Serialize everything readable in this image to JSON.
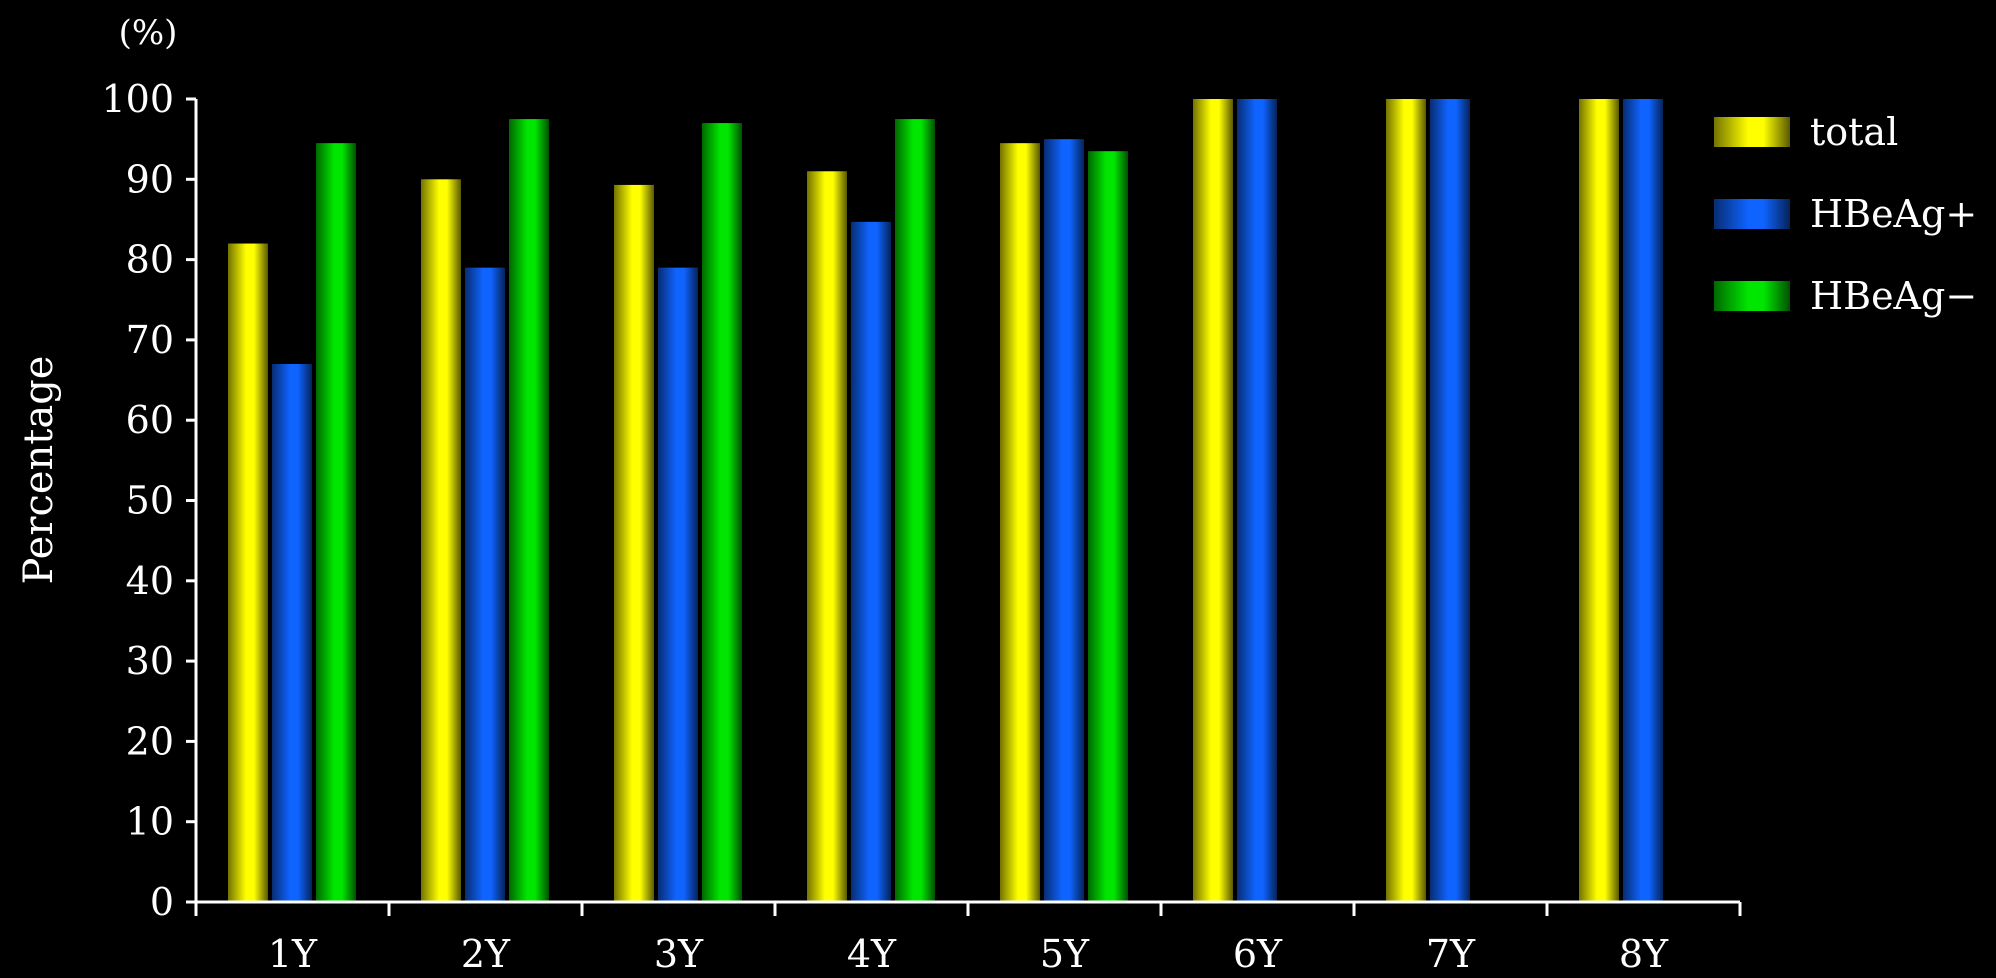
{
  "chart_data": {
    "type": "bar",
    "unit_label": "(%)",
    "ylabel": "Percentage",
    "xlabel": "",
    "ylim": [
      0,
      100
    ],
    "yticks": [
      0,
      10,
      20,
      30,
      40,
      50,
      60,
      70,
      80,
      90,
      100
    ],
    "categories": [
      "1Y",
      "2Y",
      "3Y",
      "4Y",
      "5Y",
      "6Y",
      "7Y",
      "8Y"
    ],
    "series": [
      {
        "name": "total",
        "color": "#ffff00",
        "values": [
          82,
          90,
          89.3,
          91,
          94.5,
          100,
          100,
          100
        ]
      },
      {
        "name": "HBeAg+",
        "color": "#0f63ff",
        "values": [
          67,
          79,
          79,
          84.7,
          95,
          100,
          100,
          100
        ]
      },
      {
        "name": "HBeAg−",
        "color": "#00e600",
        "values": [
          94.5,
          97.5,
          97,
          97.5,
          93.5,
          null,
          null,
          null
        ]
      }
    ],
    "grid": false,
    "legend_position": "top-right"
  }
}
